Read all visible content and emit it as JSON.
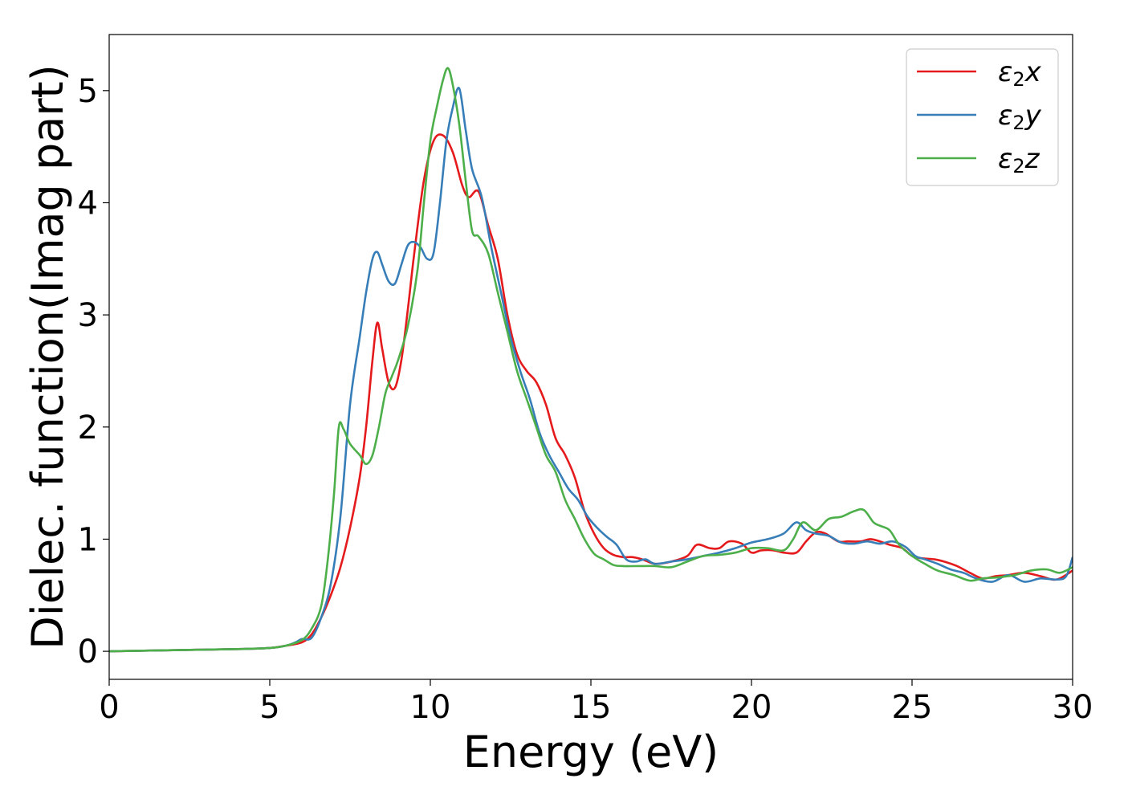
{
  "chart_data": {
    "type": "line",
    "xlabel": "Energy (eV)",
    "ylabel": "Dielec. function(Imag part)",
    "xlim": [
      0,
      30
    ],
    "ylim": [
      -0.25,
      5.5
    ],
    "xticks": [
      0,
      5,
      10,
      15,
      20,
      25,
      30
    ],
    "yticks": [
      0,
      1,
      2,
      3,
      4,
      5
    ],
    "grid": false,
    "legend": "top-right",
    "series": [
      {
        "name": "ε₂x",
        "legend_base": "ε",
        "legend_sub": "2",
        "legend_var": "x",
        "color": "#e41a1c",
        "x": [
          0,
          2,
          4,
          5,
          5.5,
          6,
          6.3,
          6.6,
          6.9,
          7.2,
          7.5,
          7.8,
          8.0,
          8.2,
          8.35,
          8.5,
          8.7,
          8.9,
          9.1,
          9.3,
          9.5,
          9.8,
          10.1,
          10.4,
          10.7,
          11.0,
          11.2,
          11.5,
          11.8,
          12.1,
          12.4,
          12.7,
          13.0,
          13.3,
          13.6,
          13.9,
          14.2,
          14.5,
          14.8,
          15.1,
          15.4,
          15.7,
          16.0,
          16.3,
          16.6,
          17.0,
          17.5,
          18.0,
          18.3,
          18.7,
          19.0,
          19.3,
          19.7,
          20.0,
          20.3,
          20.7,
          21.0,
          21.4,
          21.7,
          22.0,
          22.3,
          22.7,
          23.0,
          23.4,
          23.7,
          24.0,
          24.3,
          24.7,
          25.0,
          25.3,
          25.7,
          26.0,
          26.4,
          26.8,
          27.2,
          27.6,
          28.0,
          28.5,
          29.0,
          29.5,
          30.0
        ],
        "values": [
          0,
          0.01,
          0.02,
          0.03,
          0.05,
          0.08,
          0.15,
          0.3,
          0.5,
          0.75,
          1.1,
          1.55,
          2.0,
          2.6,
          2.93,
          2.7,
          2.4,
          2.35,
          2.6,
          3.05,
          3.55,
          4.2,
          4.55,
          4.6,
          4.45,
          4.15,
          4.05,
          4.1,
          3.8,
          3.5,
          3.0,
          2.65,
          2.5,
          2.4,
          2.2,
          1.9,
          1.75,
          1.55,
          1.25,
          1.05,
          0.92,
          0.86,
          0.84,
          0.84,
          0.82,
          0.78,
          0.8,
          0.85,
          0.95,
          0.92,
          0.92,
          0.98,
          0.96,
          0.88,
          0.9,
          0.9,
          0.88,
          0.88,
          0.98,
          1.06,
          1.05,
          0.98,
          0.98,
          0.98,
          1.0,
          0.98,
          0.95,
          0.92,
          0.85,
          0.83,
          0.82,
          0.8,
          0.76,
          0.7,
          0.65,
          0.67,
          0.68,
          0.7,
          0.67,
          0.64,
          0.72
        ]
      },
      {
        "name": "ε₂y",
        "legend_base": "ε",
        "legend_sub": "2",
        "legend_var": "y",
        "color": "#377eb8",
        "x": [
          0,
          2,
          4,
          5,
          5.5,
          5.8,
          6.0,
          6.3,
          6.6,
          6.9,
          7.2,
          7.5,
          7.8,
          8.0,
          8.2,
          8.35,
          8.5,
          8.7,
          8.9,
          9.1,
          9.3,
          9.5,
          9.7,
          9.9,
          10.1,
          10.3,
          10.5,
          10.7,
          10.9,
          11.1,
          11.3,
          11.6,
          11.9,
          12.2,
          12.5,
          12.8,
          13.1,
          13.4,
          13.7,
          14.0,
          14.3,
          14.6,
          14.9,
          15.2,
          15.5,
          15.8,
          16.1,
          16.4,
          16.7,
          17.0,
          17.5,
          18.0,
          18.5,
          19.0,
          19.5,
          20.0,
          20.5,
          21.0,
          21.4,
          21.7,
          22.0,
          22.4,
          22.8,
          23.2,
          23.6,
          24.0,
          24.4,
          24.8,
          25.1,
          25.4,
          25.8,
          26.2,
          26.6,
          27.0,
          27.5,
          28.0,
          28.5,
          29.0,
          29.5,
          29.8,
          30.0
        ],
        "values": [
          0,
          0.01,
          0.02,
          0.03,
          0.05,
          0.08,
          0.11,
          0.12,
          0.3,
          0.6,
          1.2,
          2.2,
          2.8,
          3.2,
          3.5,
          3.56,
          3.45,
          3.3,
          3.28,
          3.45,
          3.62,
          3.65,
          3.6,
          3.5,
          3.55,
          4.0,
          4.55,
          4.85,
          5.02,
          4.65,
          4.3,
          4.05,
          3.6,
          3.2,
          2.8,
          2.5,
          2.25,
          1.95,
          1.75,
          1.6,
          1.45,
          1.35,
          1.2,
          1.1,
          1.02,
          0.95,
          0.82,
          0.8,
          0.82,
          0.78,
          0.8,
          0.82,
          0.85,
          0.88,
          0.92,
          0.97,
          1.0,
          1.05,
          1.15,
          1.08,
          1.05,
          1.03,
          0.97,
          0.96,
          0.98,
          0.96,
          0.98,
          0.93,
          0.85,
          0.82,
          0.78,
          0.73,
          0.7,
          0.65,
          0.62,
          0.68,
          0.62,
          0.65,
          0.64,
          0.67,
          0.84
        ]
      },
      {
        "name": "ε₂z",
        "legend_base": "ε",
        "legend_sub": "2",
        "legend_var": "z",
        "color": "#4daf4a",
        "x": [
          0,
          2,
          4,
          5,
          5.5,
          6.0,
          6.3,
          6.6,
          6.8,
          7.0,
          7.15,
          7.3,
          7.5,
          7.8,
          8.0,
          8.2,
          8.4,
          8.6,
          8.8,
          9.0,
          9.3,
          9.6,
          9.8,
          10.0,
          10.2,
          10.4,
          10.55,
          10.7,
          10.9,
          11.1,
          11.3,
          11.5,
          11.8,
          12.1,
          12.4,
          12.7,
          13.0,
          13.3,
          13.6,
          13.9,
          14.2,
          14.5,
          14.8,
          15.1,
          15.4,
          15.7,
          16.0,
          16.5,
          17.0,
          17.5,
          18.0,
          18.5,
          19.0,
          19.5,
          20.0,
          20.5,
          21.0,
          21.3,
          21.6,
          22.0,
          22.4,
          22.8,
          23.2,
          23.5,
          23.8,
          24.0,
          24.3,
          24.6,
          25.0,
          25.4,
          25.8,
          26.3,
          26.8,
          27.2,
          27.7,
          28.2,
          28.7,
          29.2,
          29.6,
          30.0
        ],
        "values": [
          0,
          0.01,
          0.02,
          0.03,
          0.05,
          0.1,
          0.2,
          0.4,
          0.8,
          1.4,
          2.0,
          1.98,
          1.85,
          1.75,
          1.67,
          1.75,
          2.0,
          2.3,
          2.45,
          2.6,
          2.9,
          3.4,
          4.0,
          4.55,
          4.85,
          5.1,
          5.2,
          5.05,
          4.7,
          4.2,
          3.75,
          3.7,
          3.55,
          3.2,
          2.85,
          2.5,
          2.25,
          2.0,
          1.75,
          1.6,
          1.35,
          1.18,
          1.0,
          0.87,
          0.82,
          0.77,
          0.76,
          0.76,
          0.76,
          0.75,
          0.8,
          0.85,
          0.86,
          0.88,
          0.92,
          0.92,
          0.9,
          1.0,
          1.15,
          1.08,
          1.18,
          1.2,
          1.25,
          1.26,
          1.15,
          1.12,
          1.08,
          0.95,
          0.85,
          0.78,
          0.72,
          0.68,
          0.63,
          0.65,
          0.66,
          0.68,
          0.72,
          0.73,
          0.7,
          0.75
        ]
      }
    ]
  }
}
